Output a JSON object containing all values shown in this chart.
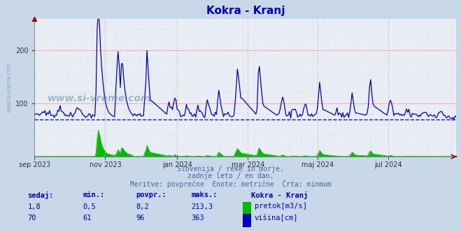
{
  "title": "Kokra - Kranj",
  "title_color": "#0000cc",
  "bg_color": "#c8d8e8",
  "plot_bg_color": "#e8eef4",
  "grid_color_h": "#ff9999",
  "grid_color_v": "#ddaaaa",
  "x_tick_labels": [
    "sep 2023",
    "nov 2023",
    "jan 2024",
    "mar 2024",
    "maj 2024",
    "jul 2024"
  ],
  "x_tick_positions": [
    0,
    61,
    123,
    184,
    244,
    305
  ],
  "yticks": [
    100,
    200
  ],
  "y_max": 260,
  "dashed_line_value": 70,
  "dashed_line_color": "#0000aa",
  "flow_color": "#00bb00",
  "height_color": "#0000cc",
  "subtitle_lines": [
    "Slovenija / reke in morje.",
    "zadnje leto / en dan.",
    "Meritve: povprečne  Enote: metrične  Črta: minmum"
  ],
  "subtitle_color": "#4466aa",
  "table_color": "#0000cc",
  "legend_label_flow": "pretok[m3/s]",
  "legend_label_height": "višina[cm]",
  "legend_color_flow": "#00bb00",
  "legend_color_height": "#0000cc",
  "arrow_color": "#990000",
  "watermark": "www.si-vreme.com",
  "watermark_color": "#6688aa"
}
